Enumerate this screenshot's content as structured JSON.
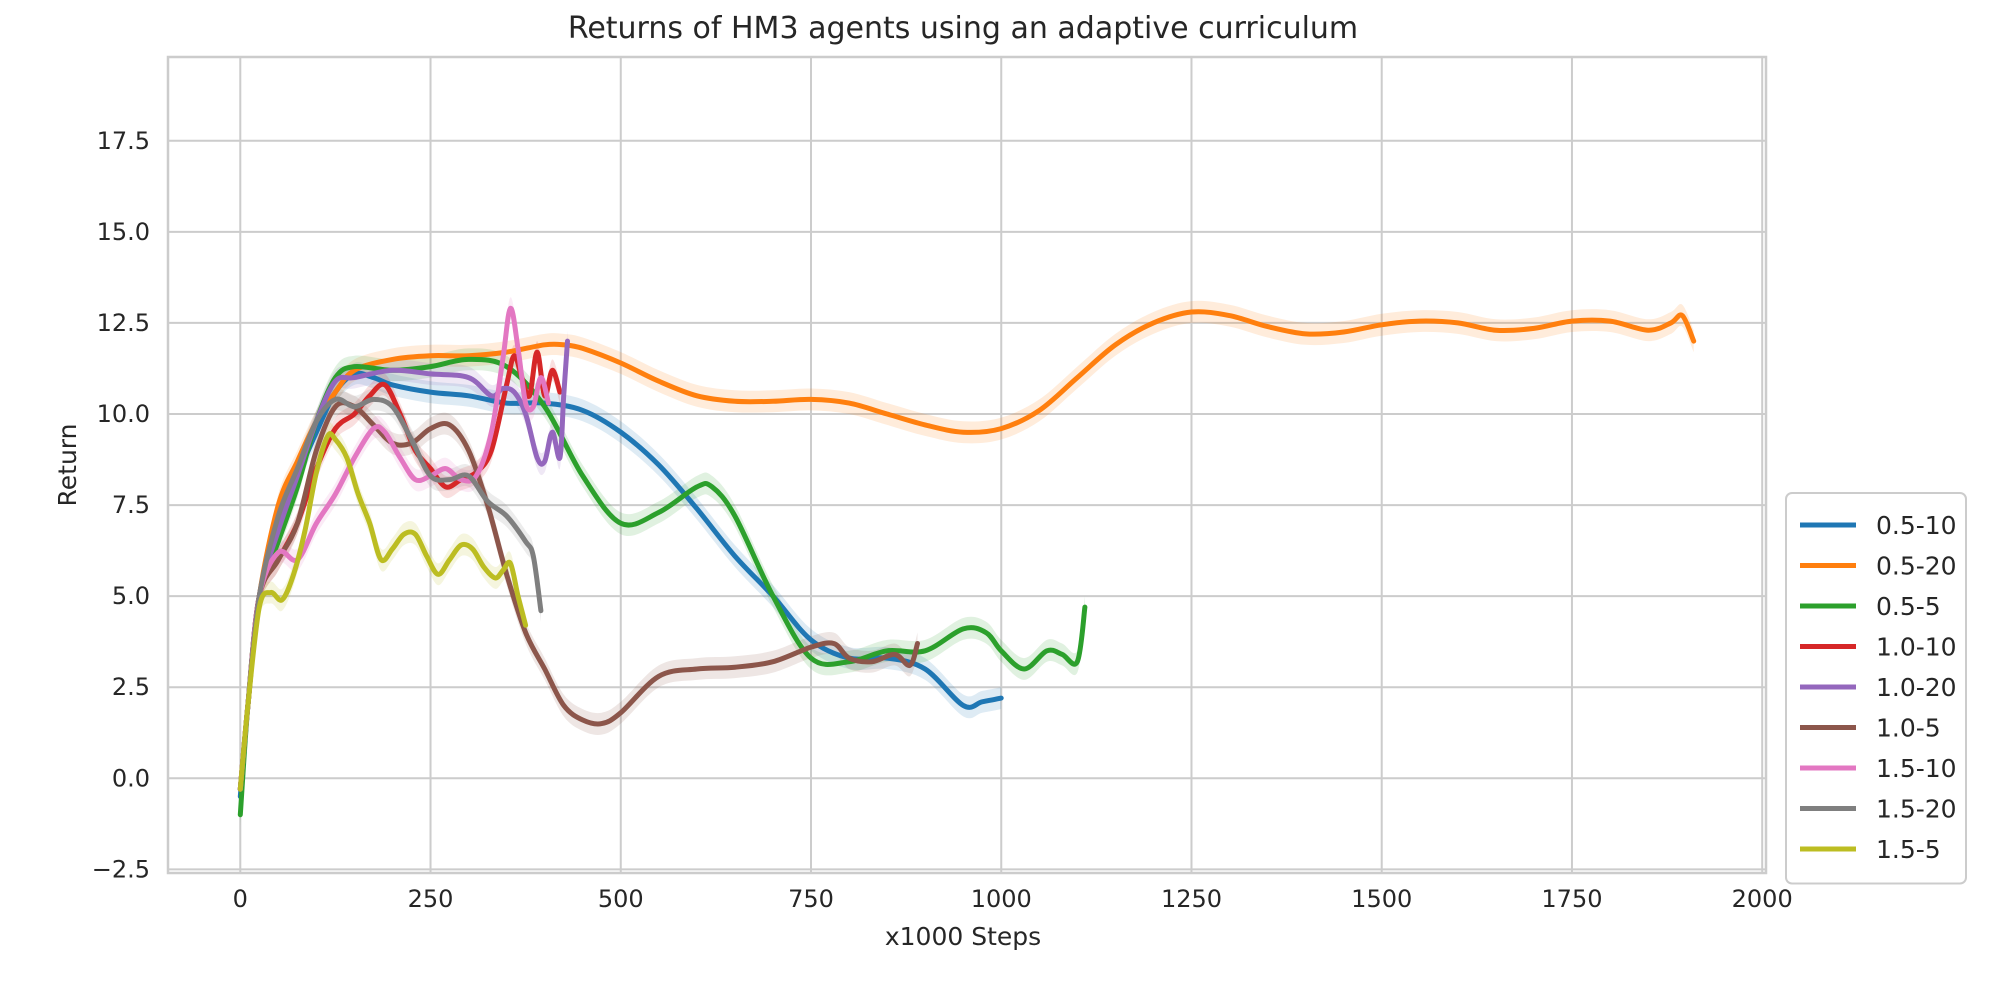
{
  "chart_data": {
    "type": "line",
    "title": "Returns of HM3 agents using an adaptive curriculum",
    "xlabel": "x1000 Steps",
    "ylabel": "Return",
    "xlim": [
      -95,
      2005
    ],
    "ylim": [
      -2.6,
      19.8
    ],
    "xticks": [
      0,
      250,
      500,
      750,
      1000,
      1250,
      1500,
      1750,
      2000
    ],
    "yticks": [
      -2.5,
      0.0,
      2.5,
      5.0,
      7.5,
      10.0,
      12.5,
      15.0,
      17.5
    ],
    "xtick_labels": [
      "0",
      "250",
      "500",
      "750",
      "1000",
      "1250",
      "1500",
      "1750",
      "2000"
    ],
    "ytick_labels": [
      "−2.5",
      "0.0",
      "2.5",
      "5.0",
      "7.5",
      "10.0",
      "12.5",
      "15.0",
      "17.5"
    ],
    "grid": true,
    "legend_position": "lower right, outside plot",
    "series": [
      {
        "name": "0.5-10",
        "color": "#1f77b4",
        "x": [
          0,
          10,
          25,
          50,
          75,
          100,
          125,
          150,
          175,
          200,
          250,
          300,
          350,
          400,
          450,
          500,
          550,
          600,
          650,
          700,
          750,
          800,
          850,
          900,
          950,
          975,
          1000
        ],
        "y": [
          -0.5,
          2.0,
          5.0,
          7.0,
          8.3,
          9.5,
          10.6,
          11.1,
          11.0,
          10.8,
          10.6,
          10.5,
          10.3,
          10.3,
          10.1,
          9.5,
          8.6,
          7.4,
          6.1,
          5.0,
          3.8,
          3.3,
          3.3,
          3.0,
          2.0,
          2.1,
          2.2
        ]
      },
      {
        "name": "0.5-20",
        "color": "#ff7f0e",
        "x": [
          0,
          10,
          25,
          50,
          75,
          100,
          125,
          150,
          200,
          250,
          300,
          350,
          400,
          425,
          450,
          500,
          550,
          600,
          650,
          700,
          750,
          800,
          850,
          900,
          950,
          1000,
          1050,
          1100,
          1150,
          1200,
          1250,
          1300,
          1350,
          1400,
          1450,
          1500,
          1550,
          1600,
          1650,
          1700,
          1750,
          1800,
          1850,
          1880,
          1895,
          1910
        ],
        "y": [
          -0.3,
          2.0,
          5.0,
          7.5,
          8.7,
          9.8,
          10.6,
          11.2,
          11.5,
          11.6,
          11.6,
          11.7,
          11.9,
          11.9,
          11.8,
          11.4,
          10.9,
          10.5,
          10.35,
          10.35,
          10.4,
          10.3,
          10.0,
          9.7,
          9.5,
          9.6,
          10.1,
          11.0,
          11.9,
          12.5,
          12.8,
          12.7,
          12.4,
          12.2,
          12.25,
          12.45,
          12.55,
          12.5,
          12.3,
          12.35,
          12.55,
          12.55,
          12.3,
          12.5,
          12.7,
          12.0
        ]
      },
      {
        "name": "0.5-5",
        "color": "#2ca02c",
        "x": [
          0,
          10,
          25,
          50,
          75,
          100,
          125,
          150,
          200,
          250,
          300,
          350,
          400,
          450,
          500,
          550,
          600,
          620,
          650,
          700,
          750,
          800,
          850,
          900,
          950,
          980,
          1000,
          1030,
          1060,
          1080,
          1100,
          1110
        ],
        "y": [
          -1.0,
          2.0,
          5.0,
          6.5,
          8.0,
          9.8,
          11.0,
          11.3,
          11.2,
          11.3,
          11.5,
          11.3,
          10.2,
          8.3,
          7.0,
          7.3,
          8.0,
          8.0,
          7.2,
          5.0,
          3.3,
          3.2,
          3.5,
          3.5,
          4.1,
          4.0,
          3.5,
          3.0,
          3.5,
          3.4,
          3.2,
          4.7
        ]
      },
      {
        "name": "1.0-10",
        "color": "#d62728",
        "x": [
          0,
          10,
          25,
          50,
          75,
          100,
          125,
          150,
          170,
          190,
          210,
          230,
          250,
          270,
          290,
          310,
          330,
          350,
          360,
          370,
          380,
          390,
          400,
          410,
          420
        ],
        "y": [
          -0.3,
          2.0,
          5.0,
          6.0,
          7.0,
          8.5,
          9.6,
          10.0,
          10.5,
          10.8,
          10.0,
          9.0,
          8.5,
          8.0,
          8.2,
          8.4,
          9.0,
          10.8,
          11.6,
          11.0,
          10.5,
          11.7,
          10.5,
          11.2,
          10.6
        ]
      },
      {
        "name": "1.0-20",
        "color": "#9467bd",
        "x": [
          0,
          10,
          25,
          50,
          75,
          100,
          125,
          150,
          200,
          250,
          300,
          330,
          345,
          360,
          375,
          390,
          400,
          410,
          420,
          425,
          430
        ],
        "y": [
          -0.3,
          2.0,
          5.0,
          6.8,
          8.3,
          9.8,
          10.9,
          11.0,
          11.2,
          11.1,
          11.0,
          10.5,
          10.7,
          10.6,
          10.0,
          8.8,
          8.7,
          9.5,
          8.8,
          10.5,
          12.0
        ]
      },
      {
        "name": "1.0-5",
        "color": "#8c564b",
        "x": [
          0,
          10,
          25,
          50,
          75,
          100,
          125,
          150,
          175,
          200,
          225,
          250,
          275,
          300,
          325,
          350,
          375,
          400,
          425,
          450,
          475,
          500,
          550,
          600,
          650,
          700,
          750,
          780,
          800,
          830,
          860,
          880,
          890
        ],
        "y": [
          -0.3,
          2.0,
          5.0,
          6.0,
          7.0,
          9.0,
          10.2,
          10.2,
          9.7,
          9.2,
          9.2,
          9.6,
          9.7,
          9.0,
          7.5,
          5.6,
          4.0,
          3.0,
          2.0,
          1.6,
          1.5,
          1.8,
          2.8,
          3.0,
          3.05,
          3.2,
          3.6,
          3.7,
          3.3,
          3.2,
          3.4,
          3.1,
          3.7
        ]
      },
      {
        "name": "1.5-10",
        "color": "#e377c2",
        "x": [
          0,
          10,
          25,
          50,
          75,
          100,
          125,
          150,
          175,
          190,
          210,
          230,
          250,
          270,
          290,
          310,
          330,
          345,
          355,
          365,
          375,
          385,
          395,
          405
        ],
        "y": [
          -0.3,
          2.0,
          5.0,
          6.2,
          6.0,
          7.0,
          7.8,
          8.8,
          9.6,
          9.5,
          8.8,
          8.2,
          8.3,
          8.5,
          8.2,
          8.3,
          9.5,
          11.5,
          12.9,
          11.8,
          10.3,
          10.2,
          11.0,
          10.3
        ]
      },
      {
        "name": "1.5-20",
        "color": "#7f7f7f",
        "x": [
          0,
          10,
          25,
          50,
          75,
          100,
          125,
          150,
          175,
          200,
          225,
          250,
          275,
          300,
          325,
          350,
          375,
          385,
          395
        ],
        "y": [
          -0.3,
          2.0,
          5.0,
          7.2,
          8.5,
          9.8,
          10.4,
          10.2,
          10.4,
          10.2,
          9.3,
          8.3,
          8.2,
          8.3,
          7.6,
          7.2,
          6.5,
          6.1,
          4.6
        ]
      },
      {
        "name": "1.5-5",
        "color": "#bcbd22",
        "x": [
          0,
          10,
          25,
          40,
          55,
          70,
          85,
          100,
          115,
          125,
          140,
          155,
          170,
          185,
          200,
          215,
          230,
          245,
          260,
          275,
          290,
          305,
          320,
          335,
          345,
          355,
          365,
          375
        ],
        "y": [
          -0.3,
          2.0,
          4.7,
          5.1,
          4.9,
          5.6,
          6.8,
          8.4,
          9.4,
          9.3,
          8.8,
          7.8,
          7.0,
          6.0,
          6.3,
          6.7,
          6.7,
          6.1,
          5.6,
          6.0,
          6.4,
          6.3,
          5.8,
          5.5,
          5.7,
          5.9,
          5.0,
          4.2
        ]
      }
    ]
  }
}
